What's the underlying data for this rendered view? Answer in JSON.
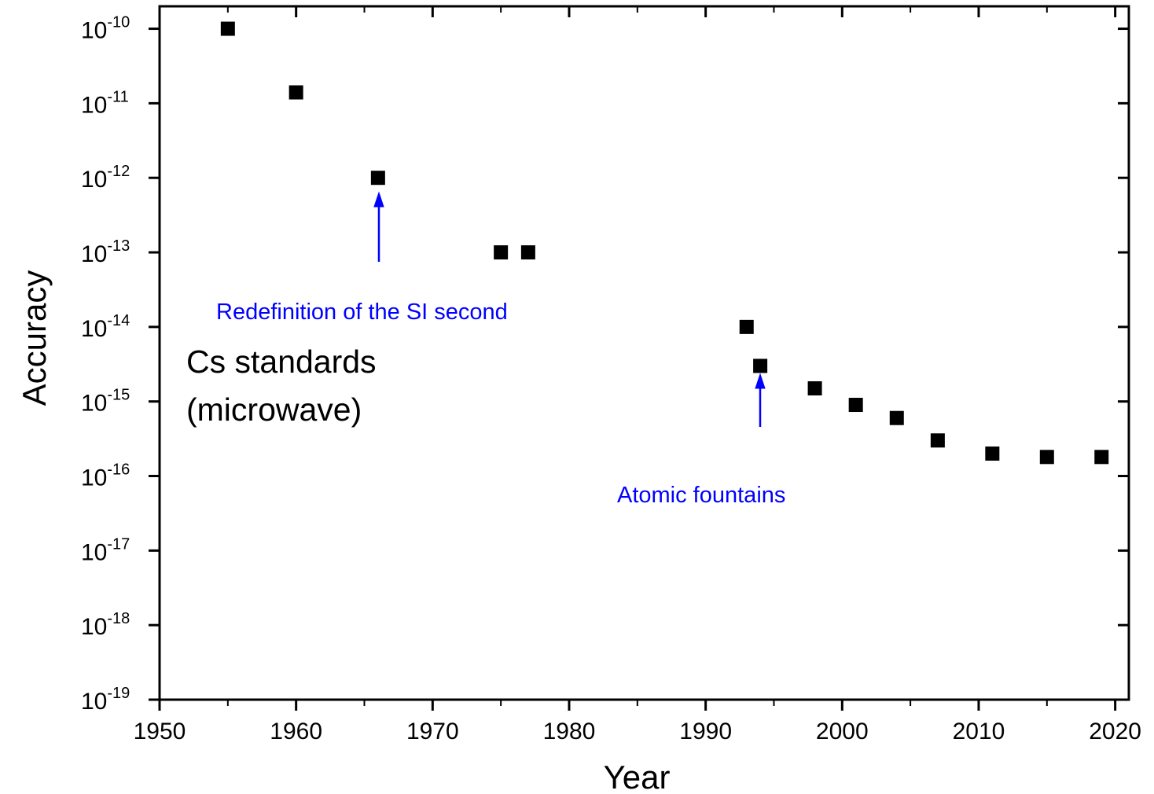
{
  "chart_data": {
    "type": "scatter",
    "x_label": "Year",
    "y_label": "Accuracy",
    "y_scale": "log",
    "color": "#000000",
    "annotation_color": "#0000ff",
    "x": [
      1955,
      1960,
      1966,
      1975,
      1977,
      1993,
      1994,
      1998,
      2001,
      2004,
      2007,
      2011,
      2015,
      2019
    ],
    "values": [
      1e-10,
      1.4e-11,
      1e-12,
      1e-13,
      1e-13,
      1e-14,
      3e-15,
      1.5e-15,
      9e-16,
      6e-16,
      3e-16,
      2e-16,
      1.8e-16,
      1.8e-16
    ],
    "xlim": [
      1950,
      2021
    ],
    "xticks": [
      1950,
      1960,
      1970,
      1980,
      1990,
      2000,
      2010,
      2020
    ],
    "ylim": [
      1e-19,
      2e-10
    ],
    "yticks": [
      {
        "value": 1e-10,
        "label": {
          "base": "10",
          "exponent": "-10"
        }
      },
      {
        "value": 1e-11,
        "label": {
          "base": "10",
          "exponent": "-11"
        }
      },
      {
        "value": 1e-12,
        "label": {
          "base": "10",
          "exponent": "-12"
        }
      },
      {
        "value": 1e-13,
        "label": {
          "base": "10",
          "exponent": "-13"
        }
      },
      {
        "value": 1e-14,
        "label": {
          "base": "10",
          "exponent": "-14"
        }
      },
      {
        "value": 1e-15,
        "label": {
          "base": "10",
          "exponent": "-15"
        }
      },
      {
        "value": 1e-16,
        "label": {
          "base": "10",
          "exponent": "-16"
        }
      },
      {
        "value": 1e-17,
        "label": {
          "base": "10",
          "exponent": "-17"
        }
      },
      {
        "value": 1e-18,
        "label": {
          "base": "10",
          "exponent": "-18"
        }
      },
      {
        "value": 1e-19,
        "label": {
          "base": "10",
          "exponent": "-19"
        }
      }
    ],
    "annotations": [
      "Redefinition of the SI second",
      "Atomic fountains"
    ],
    "inset_label": [
      "Cs standards",
      "(microwave)"
    ]
  }
}
